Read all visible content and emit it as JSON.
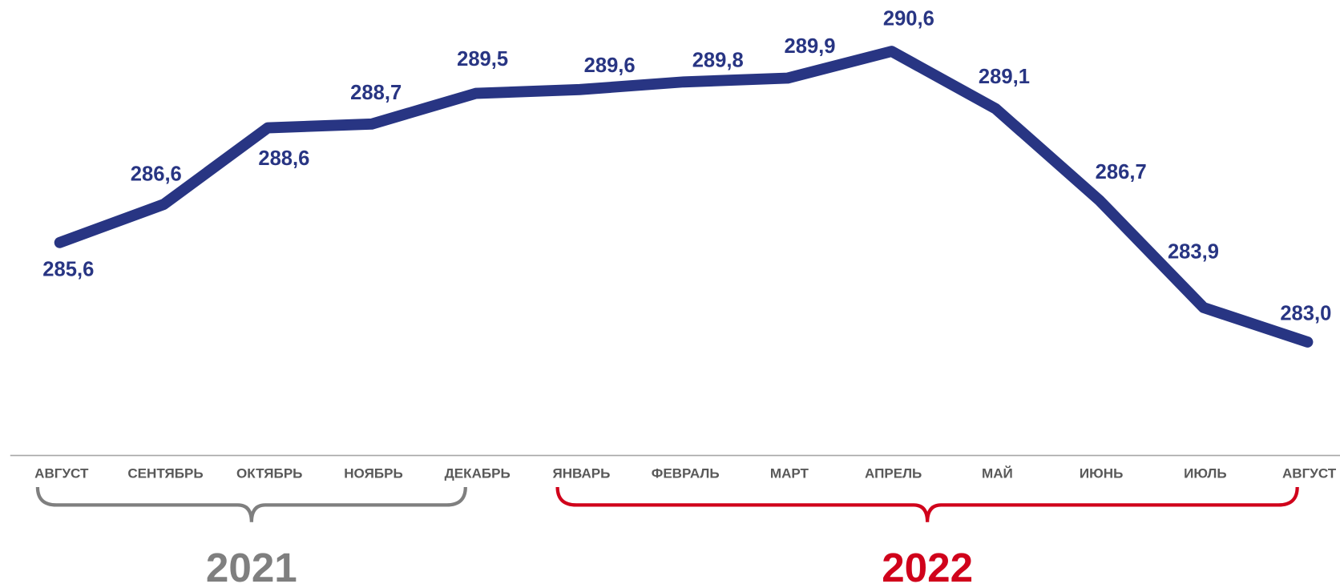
{
  "chart_data": {
    "type": "line",
    "categories": [
      "АВГУСТ",
      "СЕНТЯБРЬ",
      "ОКТЯБРЬ",
      "НОЯБРЬ",
      "ДЕКАБРЬ",
      "ЯНВАРЬ",
      "ФЕВРАЛЬ",
      "МАРТ",
      "АПРЕЛЬ",
      "МАЙ",
      "ИЮНЬ",
      "ИЮЛЬ",
      "АВГУСТ"
    ],
    "series": [
      {
        "color": "#283583",
        "values": [
          285.6,
          286.6,
          288.6,
          288.7,
          289.5,
          289.6,
          289.8,
          289.9,
          290.6,
          289.1,
          286.7,
          283.9,
          283.0
        ],
        "value_labels": [
          "285,6",
          "286,6",
          "288,6",
          "288,7",
          "289,5",
          "289,6",
          "289,8",
          "289,9",
          "290,6",
          "289,1",
          "286,7",
          "283,9",
          "283,0"
        ]
      }
    ],
    "ylim": [
      282,
      291
    ],
    "groups": [
      {
        "name": "2021",
        "color": "#7f7f7f"
      },
      {
        "name": "2022",
        "color": "#d0021b"
      }
    ]
  }
}
